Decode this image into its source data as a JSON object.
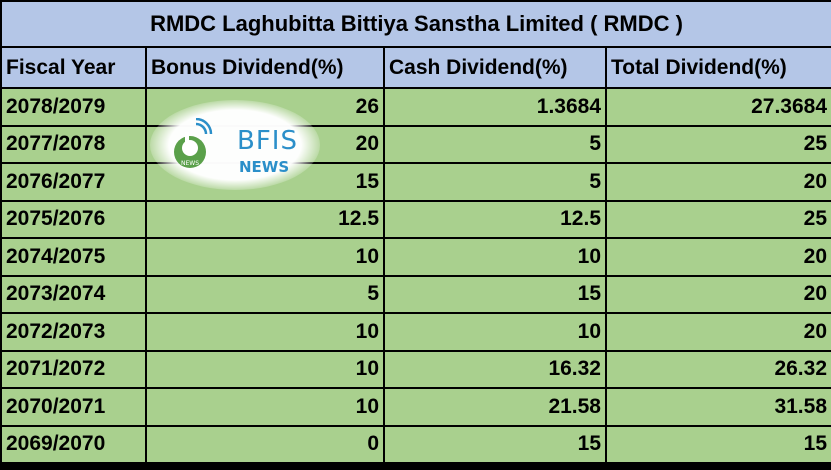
{
  "chart_data": {
    "type": "table",
    "title": "RMDC Laghubitta Bittiya Sanstha Limited ( RMDC )",
    "columns": [
      "Fiscal Year",
      "Bonus Dividend(%)",
      "Cash Dividend(%)",
      "Total Dividend(%)"
    ],
    "rows": [
      {
        "year": "2078/2079",
        "bonus": "26",
        "cash": "1.3684",
        "total": "27.3684"
      },
      {
        "year": "2077/2078",
        "bonus": "20",
        "cash": "5",
        "total": "25"
      },
      {
        "year": "2076/2077",
        "bonus": "15",
        "cash": "5",
        "total": "20"
      },
      {
        "year": "2075/2076",
        "bonus": "12.5",
        "cash": "12.5",
        "total": "25"
      },
      {
        "year": "2074/2075",
        "bonus": "10",
        "cash": "10",
        "total": "20"
      },
      {
        "year": "2073/2074",
        "bonus": "5",
        "cash": "15",
        "total": "20"
      },
      {
        "year": "2072/2073",
        "bonus": "10",
        "cash": "10",
        "total": "20"
      },
      {
        "year": "2071/2072",
        "bonus": "10",
        "cash": "16.32",
        "total": "26.32"
      },
      {
        "year": "2070/2071",
        "bonus": "10",
        "cash": "21.58",
        "total": "31.58"
      },
      {
        "year": "2069/2070",
        "bonus": "0",
        "cash": "15",
        "total": "15"
      }
    ]
  },
  "watermark": {
    "name": "BFIS",
    "sub": "NEWS",
    "icon_label": "NEWS",
    "icon": "bfis-news-logo-icon"
  },
  "colors": {
    "header_bg": "#b4c6e7",
    "row_bg": "#a9d08e",
    "border": "#000000",
    "watermark_accent": "#2b8fc9"
  }
}
